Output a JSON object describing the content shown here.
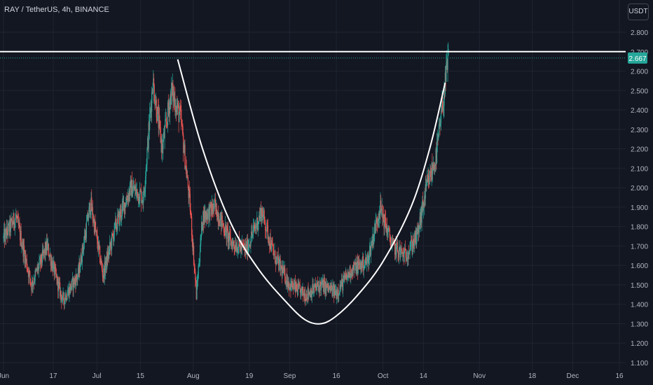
{
  "header": {
    "title": "RAY / TetherUS, 4h, BINANCE",
    "currency": "USDT"
  },
  "chart_data": {
    "type": "candlestick",
    "title": "RAY / TetherUS, 4h, BINANCE",
    "y_unit": "USDT",
    "ylim": [
      1.1,
      2.8
    ],
    "y_ticks": [
      "2.800",
      "2.700",
      "2.600",
      "2.500",
      "2.400",
      "2.300",
      "2.200",
      "2.100",
      "2.000",
      "1.900",
      "1.800",
      "1.700",
      "1.600",
      "1.500",
      "1.400",
      "1.300",
      "1.200",
      "1.100"
    ],
    "x_ticks": [
      {
        "label": "Jun",
        "date": "2023-06-01"
      },
      {
        "label": "17",
        "date": "2023-06-17"
      },
      {
        "label": "Jul",
        "date": "2023-07-01"
      },
      {
        "label": "15",
        "date": "2023-07-15"
      },
      {
        "label": "Aug",
        "date": "2023-08-01"
      },
      {
        "label": "19",
        "date": "2023-08-19"
      },
      {
        "label": "Sep",
        "date": "2023-09-01"
      },
      {
        "label": "16",
        "date": "2023-09-16"
      },
      {
        "label": "Oct",
        "date": "2023-10-01"
      },
      {
        "label": "14",
        "date": "2023-10-14"
      },
      {
        "label": "Nov",
        "date": "2023-11-01"
      },
      {
        "label": "18",
        "date": "2023-11-18"
      },
      {
        "label": "Dec",
        "date": "2023-12-01"
      },
      {
        "label": "16",
        "date": "2023-12-16"
      }
    ],
    "current_price": "2.667",
    "current_price_value": 2.667,
    "price_series": [
      {
        "date": "2023-06-01",
        "value": 1.74
      },
      {
        "date": "2023-06-05",
        "value": 1.85
      },
      {
        "date": "2023-06-10",
        "value": 1.5
      },
      {
        "date": "2023-06-15",
        "value": 1.7
      },
      {
        "date": "2023-06-20",
        "value": 1.42
      },
      {
        "date": "2023-06-25",
        "value": 1.55
      },
      {
        "date": "2023-06-29",
        "value": 1.92
      },
      {
        "date": "2023-07-03",
        "value": 1.55
      },
      {
        "date": "2023-07-07",
        "value": 1.8
      },
      {
        "date": "2023-07-12",
        "value": 2.0
      },
      {
        "date": "2023-07-16",
        "value": 1.95
      },
      {
        "date": "2023-07-19",
        "value": 2.55
      },
      {
        "date": "2023-07-22",
        "value": 2.2
      },
      {
        "date": "2023-07-25",
        "value": 2.5
      },
      {
        "date": "2023-07-28",
        "value": 2.35
      },
      {
        "date": "2023-07-31",
        "value": 1.9
      },
      {
        "date": "2023-08-02",
        "value": 1.45
      },
      {
        "date": "2023-08-04",
        "value": 1.85
      },
      {
        "date": "2023-08-08",
        "value": 1.9
      },
      {
        "date": "2023-08-13",
        "value": 1.72
      },
      {
        "date": "2023-08-18",
        "value": 1.68
      },
      {
        "date": "2023-08-23",
        "value": 1.88
      },
      {
        "date": "2023-08-27",
        "value": 1.65
      },
      {
        "date": "2023-09-01",
        "value": 1.5
      },
      {
        "date": "2023-09-06",
        "value": 1.45
      },
      {
        "date": "2023-09-11",
        "value": 1.5
      },
      {
        "date": "2023-09-16",
        "value": 1.46
      },
      {
        "date": "2023-09-21",
        "value": 1.58
      },
      {
        "date": "2023-09-26",
        "value": 1.62
      },
      {
        "date": "2023-09-30",
        "value": 1.9
      },
      {
        "date": "2023-10-04",
        "value": 1.7
      },
      {
        "date": "2023-10-08",
        "value": 1.65
      },
      {
        "date": "2023-10-12",
        "value": 1.75
      },
      {
        "date": "2023-10-15",
        "value": 2.0
      },
      {
        "date": "2023-10-18",
        "value": 2.15
      },
      {
        "date": "2023-10-20",
        "value": 2.4
      },
      {
        "date": "2023-10-22",
        "value": 2.667
      }
    ],
    "annotations": {
      "resistance_line": {
        "value": 2.7,
        "from_date": "2023-06-01",
        "to_date": "2023-12-20"
      },
      "cup_curve": [
        {
          "date": "2023-07-27",
          "value": 2.66
        },
        {
          "date": "2023-08-04",
          "value": 2.2
        },
        {
          "date": "2023-08-13",
          "value": 1.82
        },
        {
          "date": "2023-08-22",
          "value": 1.58
        },
        {
          "date": "2023-08-31",
          "value": 1.41
        },
        {
          "date": "2023-09-06",
          "value": 1.32
        },
        {
          "date": "2023-09-11",
          "value": 1.3
        },
        {
          "date": "2023-09-16",
          "value": 1.34
        },
        {
          "date": "2023-09-23",
          "value": 1.45
        },
        {
          "date": "2023-10-01",
          "value": 1.62
        },
        {
          "date": "2023-10-10",
          "value": 1.9
        },
        {
          "date": "2023-10-16",
          "value": 2.2
        },
        {
          "date": "2023-10-21",
          "value": 2.54
        }
      ]
    },
    "colors": {
      "background": "#131722",
      "grid": "#1f2430",
      "up": "#26a69a",
      "down": "#ef5350",
      "annotation": "#ffffff",
      "price_tag": "#26a69a"
    },
    "grid": true
  }
}
